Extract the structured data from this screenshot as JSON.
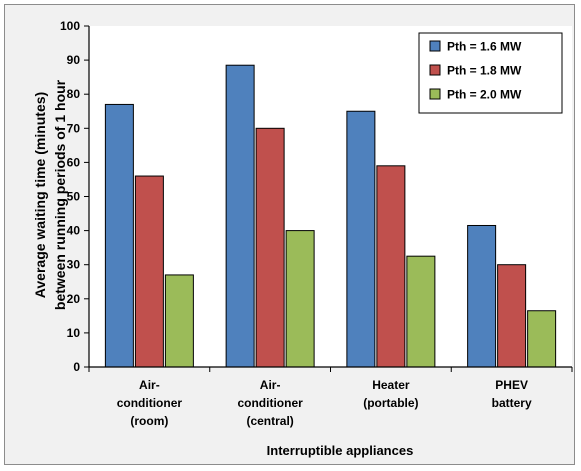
{
  "chart_data": {
    "type": "bar",
    "xlabel": "Interruptible appliances",
    "ylabel_lines": [
      "Average waiting time (minutes)",
      "between running periods of 1 hour"
    ],
    "ylim": [
      0,
      100
    ],
    "yticks": [
      0,
      10,
      20,
      30,
      40,
      50,
      60,
      70,
      80,
      90,
      100
    ],
    "grid": false,
    "legend_position": "top-right",
    "categories": [
      [
        "Air-",
        "conditioner",
        "(room)"
      ],
      [
        "Air-",
        "conditioner",
        "(central)"
      ],
      [
        "Heater",
        "(portable)"
      ],
      [
        "PHEV",
        "battery"
      ]
    ],
    "series": [
      {
        "name": "Pth = 1.6 MW",
        "color": "#4f81bd",
        "values": [
          77,
          88.5,
          75,
          41.5
        ]
      },
      {
        "name": "Pth = 1.8 MW",
        "color": "#c0504d",
        "values": [
          56,
          70,
          59,
          30
        ]
      },
      {
        "name": "Pth = 2.0 MW",
        "color": "#9bbb59",
        "values": [
          27,
          40,
          32.5,
          16.5
        ]
      }
    ]
  }
}
